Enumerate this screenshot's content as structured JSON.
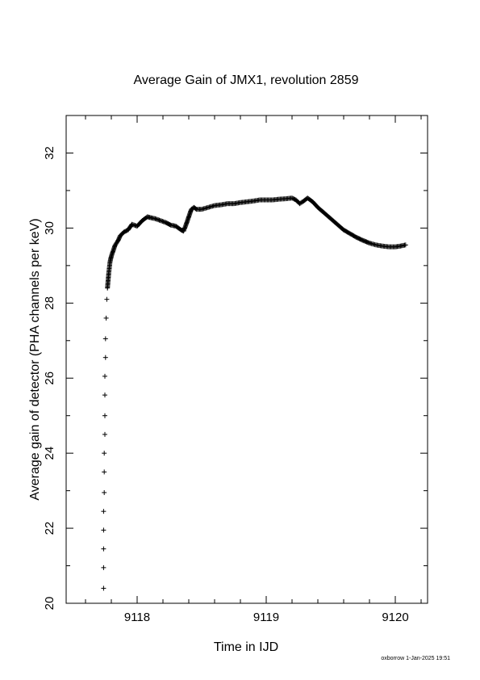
{
  "chart_data": {
    "type": "scatter",
    "title": "Average Gain of JMX1, revolution 2859",
    "xlabel": "Time in IJD",
    "ylabel": "Average gain of detector (PHA channels per keV)",
    "xlim": [
      9117.45,
      9120.25
    ],
    "ylim": [
      20,
      33
    ],
    "x_ticks": [
      9118,
      9119,
      9120
    ],
    "x_tick_labels": [
      "9118",
      "9119",
      "9120"
    ],
    "y_ticks": [
      20,
      22,
      24,
      26,
      28,
      30,
      32
    ],
    "y_tick_labels": [
      "20",
      "22",
      "24",
      "26",
      "28",
      "30",
      "32"
    ],
    "grid": false,
    "marker": "plus",
    "series": [
      {
        "x": [
          9117.74,
          9117.74,
          9117.74,
          9117.74,
          9117.74,
          9117.745,
          9117.745,
          9117.745,
          9117.75,
          9117.75,
          9117.75,
          9117.75,
          9117.755,
          9117.755,
          9117.76,
          9117.765,
          9117.77,
          9117.775,
          9117.78,
          9117.785,
          9117.79,
          9117.8,
          9117.81,
          9117.82,
          9117.83,
          9117.85,
          9117.87,
          9117.9,
          9117.93,
          9117.96,
          9118.0,
          9118.04,
          9118.08,
          9118.1,
          9118.14,
          9118.18,
          9118.22,
          9118.26,
          9118.3,
          9118.34,
          9118.36,
          9118.38,
          9118.4,
          9118.42,
          9118.44,
          9118.46,
          9118.5,
          9118.55,
          9118.6,
          9118.65,
          9118.7,
          9118.75,
          9118.8,
          9118.85,
          9118.9,
          9118.95,
          9119.0,
          9119.05,
          9119.1,
          9119.15,
          9119.2,
          9119.23,
          9119.26,
          9119.29,
          9119.32,
          9119.36,
          9119.4,
          9119.45,
          9119.5,
          9119.55,
          9119.6,
          9119.65,
          9119.7,
          9119.75,
          9119.8,
          9119.85,
          9119.9,
          9119.95,
          9120.0,
          9120.04,
          9120.08
        ],
        "y": [
          20.4,
          20.95,
          21.45,
          21.95,
          22.45,
          22.95,
          23.5,
          24.0,
          24.5,
          25.0,
          25.55,
          26.05,
          26.55,
          27.05,
          27.6,
          28.1,
          28.4,
          28.6,
          28.8,
          28.95,
          29.1,
          29.25,
          29.35,
          29.45,
          29.55,
          29.65,
          29.8,
          29.9,
          29.95,
          30.1,
          30.05,
          30.2,
          30.3,
          30.28,
          30.25,
          30.2,
          30.15,
          30.08,
          30.05,
          29.95,
          29.92,
          30.1,
          30.3,
          30.5,
          30.55,
          30.5,
          30.5,
          30.55,
          30.6,
          30.62,
          30.65,
          30.65,
          30.68,
          30.7,
          30.72,
          30.75,
          30.75,
          30.75,
          30.77,
          30.78,
          30.8,
          30.75,
          30.65,
          30.72,
          30.8,
          30.7,
          30.55,
          30.4,
          30.25,
          30.1,
          29.95,
          29.85,
          29.75,
          29.67,
          29.6,
          29.55,
          29.52,
          29.5,
          29.5,
          29.52,
          29.55
        ]
      }
    ]
  },
  "footer": {
    "credit": "oxborrow 1-Jan-2025 19:51"
  }
}
